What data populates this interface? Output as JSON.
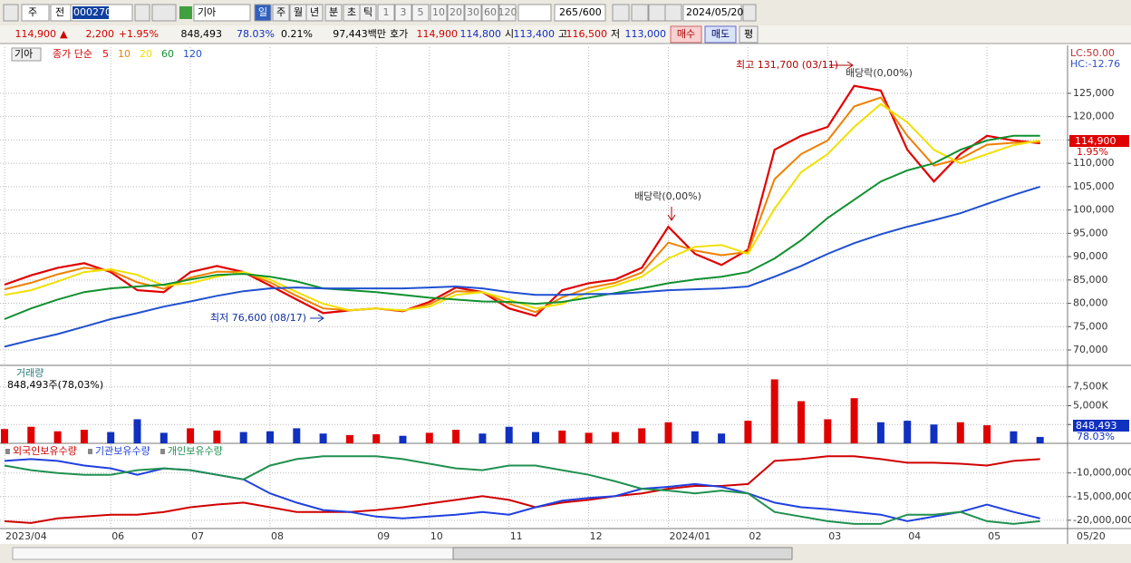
{
  "toolbar": {
    "market": "주",
    "mode": "전",
    "code": "000270",
    "name": "기아",
    "periods": [
      "일",
      "주",
      "월",
      "년",
      "분",
      "초",
      "틱"
    ],
    "intervals": [
      1,
      3,
      5,
      10,
      20,
      30,
      60,
      120
    ],
    "count": 265,
    "max_count": "/600",
    "date": "2024/05/20"
  },
  "quote_bar": {
    "price": "114,900",
    "arrow": "▲",
    "change": "2,200",
    "change_rate": "+1.95%",
    "volume": "848,493",
    "volume_ratio": "78.03%",
    "turnover": "0.21%",
    "amount": "97,443백만",
    "bid_label": "호가",
    "ask": "114,900",
    "bid": "114,800",
    "open_label": "시",
    "open": "113,400",
    "high_label": "고",
    "high": "116,500",
    "low_label": "저",
    "low": "113,000",
    "buy": "매수",
    "sell": "매도",
    "eval": "평"
  },
  "chart_data": [
    {
      "type": "line",
      "legend_title": "기아",
      "legend_label": "종가 단순",
      "categories": [
        "2023/04",
        null,
        null,
        null,
        "06",
        null,
        null,
        "07",
        null,
        null,
        "08",
        null,
        null,
        null,
        "09",
        null,
        "10",
        null,
        null,
        "11",
        null,
        null,
        "12",
        null,
        null,
        "2024/01",
        null,
        null,
        "02",
        null,
        null,
        "03",
        null,
        null,
        "04",
        null,
        null,
        "05",
        null,
        null
      ],
      "last_date": "05/20",
      "series": [
        {
          "name": "5",
          "color": "#e00000",
          "values": [
            84000,
            86000,
            87600,
            88600,
            86700,
            82800,
            82400,
            86700,
            88000,
            86700,
            83800,
            80800,
            77900,
            78500,
            78900,
            78300,
            80300,
            83400,
            82400,
            78900,
            77300,
            82800,
            84300,
            85100,
            87600,
            96400,
            90600,
            88200,
            91500,
            112900,
            115900,
            117800,
            126600,
            125600,
            112900,
            106100,
            112000,
            115900,
            114900,
            114300
          ]
        },
        {
          "name": "10",
          "color": "#f08000",
          "values": [
            83000,
            84400,
            86200,
            87600,
            87000,
            84500,
            83100,
            85500,
            86800,
            86700,
            84500,
            81600,
            78900,
            78500,
            78900,
            78400,
            79800,
            82600,
            82400,
            79900,
            78100,
            81300,
            83300,
            84400,
            86600,
            93000,
            91300,
            90300,
            91000,
            106600,
            112000,
            114900,
            122200,
            124100,
            115900,
            109500,
            111000,
            114000,
            114400,
            114600
          ]
        },
        {
          "name": "20",
          "color": "#f0e000",
          "values": [
            81800,
            82800,
            84700,
            86700,
            87300,
            86100,
            83800,
            84300,
            85700,
            86700,
            85100,
            82400,
            79900,
            78500,
            78900,
            78500,
            79300,
            81800,
            82400,
            80800,
            78900,
            79900,
            82400,
            83800,
            85700,
            89600,
            92100,
            92500,
            90600,
            100300,
            108100,
            112000,
            117800,
            122700,
            118800,
            112900,
            110000,
            112000,
            113900,
            114900
          ]
        },
        {
          "name": "60",
          "color": "#109030",
          "values": [
            76600,
            78900,
            80800,
            82400,
            83200,
            83600,
            84000,
            85100,
            86100,
            86300,
            85700,
            84700,
            83200,
            82800,
            82400,
            81800,
            81200,
            80800,
            80400,
            80300,
            79900,
            80300,
            81200,
            82200,
            83200,
            84300,
            85100,
            85700,
            86700,
            89600,
            93500,
            98300,
            102200,
            106100,
            108500,
            110000,
            112900,
            114900,
            115900,
            115900
          ]
        },
        {
          "name": "120",
          "color": "#2050d0",
          "values": [
            70700,
            72100,
            73400,
            75000,
            76600,
            77900,
            79300,
            80400,
            81600,
            82600,
            83200,
            83400,
            83200,
            83200,
            83200,
            83200,
            83400,
            83600,
            83200,
            82400,
            81800,
            81800,
            82000,
            82000,
            82400,
            82800,
            83000,
            83200,
            83600,
            85700,
            88000,
            90600,
            92900,
            94800,
            96400,
            97800,
            99300,
            101300,
            103200,
            105000
          ]
        }
      ],
      "ylim": [
        66700,
        134900
      ],
      "yticks": [
        {
          "value": 70000,
          "label": "70,000"
        },
        {
          "value": 75000,
          "label": "75,000"
        },
        {
          "value": 80000,
          "label": "80,000"
        },
        {
          "value": 85000,
          "label": "85,000"
        },
        {
          "value": 90000,
          "label": "90,000"
        },
        {
          "value": 95000,
          "label": "95,000"
        },
        {
          "value": 100000,
          "label": "100,000"
        },
        {
          "value": 105000,
          "label": "105,000"
        },
        {
          "value": 110000,
          "label": "110,000"
        },
        {
          "value": 115000,
          "label": "115,000"
        },
        {
          "value": 120000,
          "label": "120,000"
        },
        {
          "value": 125000,
          "label": "125,000"
        }
      ],
      "grid": true,
      "annotations": [
        "최고 131,700 (03/11)",
        "배당락(0,00%)",
        "배당락(0,00%)",
        "최저 76,600 (08/17)"
      ],
      "price_badge": "114,900",
      "change_badge": "1.95%",
      "lc_label": "LC:50.00",
      "hc_label": "HC:-12.76"
    },
    {
      "type": "bar",
      "title": "거래량",
      "current_label": "848,493주(78,03%)",
      "values": [
        1900000,
        2200000,
        1600000,
        1800000,
        1500000,
        3200000,
        1400000,
        2000000,
        1700000,
        1500000,
        1600000,
        2000000,
        1300000,
        1100000,
        1200000,
        1000000,
        1400000,
        1800000,
        1300000,
        2200000,
        1500000,
        1700000,
        1400000,
        1500000,
        2000000,
        2800000,
        1600000,
        1300000,
        3000000,
        8500000,
        5600000,
        3200000,
        6000000,
        2800000,
        3000000,
        2500000,
        2800000,
        2400000,
        1600000,
        848493
      ],
      "up_color": "#e00000",
      "down_color": "#1030c0",
      "ylim": [
        0,
        10240000
      ],
      "yticks": [
        {
          "value": 2500000,
          "label": "2,500K"
        },
        {
          "value": 5000000,
          "label": "5,000K"
        },
        {
          "value": 7500000,
          "label": "7,500K"
        }
      ],
      "grid": true,
      "value_badge": "848,493",
      "ratio_badge": "78.03%"
    },
    {
      "type": "line",
      "series": [
        {
          "name": "외국인보유수량",
          "color": "#d00000",
          "values": [
            -20200000,
            -20590000,
            -19610000,
            -19220000,
            -18820000,
            -18820000,
            -18240000,
            -17250000,
            -16670000,
            -16270000,
            -17250000,
            -18240000,
            -18240000,
            -18240000,
            -17840000,
            -17250000,
            -16470000,
            -15690000,
            -14900000,
            -15690000,
            -17250000,
            -16270000,
            -15690000,
            -14900000,
            -14310000,
            -13330000,
            -12750000,
            -12750000,
            -12350000,
            -7450000,
            -7060000,
            -6470000,
            -6470000,
            -7060000,
            -7840000,
            -7840000,
            -8040000,
            -8430000,
            -7450000,
            -7060000
          ]
        },
        {
          "name": "기관보유수량",
          "color": "#2040e0",
          "values": [
            -7450000,
            -7060000,
            -7450000,
            -8430000,
            -9020000,
            -10390000,
            -9020000,
            -9410000,
            -10390000,
            -11370000,
            -14310000,
            -16270000,
            -17840000,
            -18240000,
            -19220000,
            -19610000,
            -19220000,
            -18820000,
            -18240000,
            -18820000,
            -17250000,
            -15880000,
            -15290000,
            -14900000,
            -13330000,
            -12940000,
            -12350000,
            -12940000,
            -14310000,
            -16270000,
            -17250000,
            -17650000,
            -18240000,
            -18820000,
            -20200000,
            -19220000,
            -18240000,
            -16670000,
            -18240000,
            -19610000
          ]
        },
        {
          "name": "개인보유수량",
          "color": "#209050",
          "values": [
            -8430000,
            -9410000,
            -10000000,
            -10390000,
            -10390000,
            -9410000,
            -9020000,
            -9410000,
            -10390000,
            -11370000,
            -8430000,
            -7060000,
            -6470000,
            -6470000,
            -6470000,
            -7060000,
            -8040000,
            -9020000,
            -9410000,
            -8430000,
            -8430000,
            -9410000,
            -10390000,
            -11760000,
            -13330000,
            -13730000,
            -14310000,
            -13730000,
            -14310000,
            -18240000,
            -19220000,
            -20200000,
            -20780000,
            -20780000,
            -18820000,
            -18820000,
            -18240000,
            -20200000,
            -20780000,
            -20200000
          ]
        }
      ],
      "ylim": [
        -21760000,
        -3920000
      ],
      "yticks": [
        {
          "value": -10000000,
          "label": "-10,000,000"
        },
        {
          "value": -15000000,
          "label": "-15,000,000"
        },
        {
          "value": -20000000,
          "label": "-20,000,000"
        }
      ],
      "grid": true
    }
  ]
}
